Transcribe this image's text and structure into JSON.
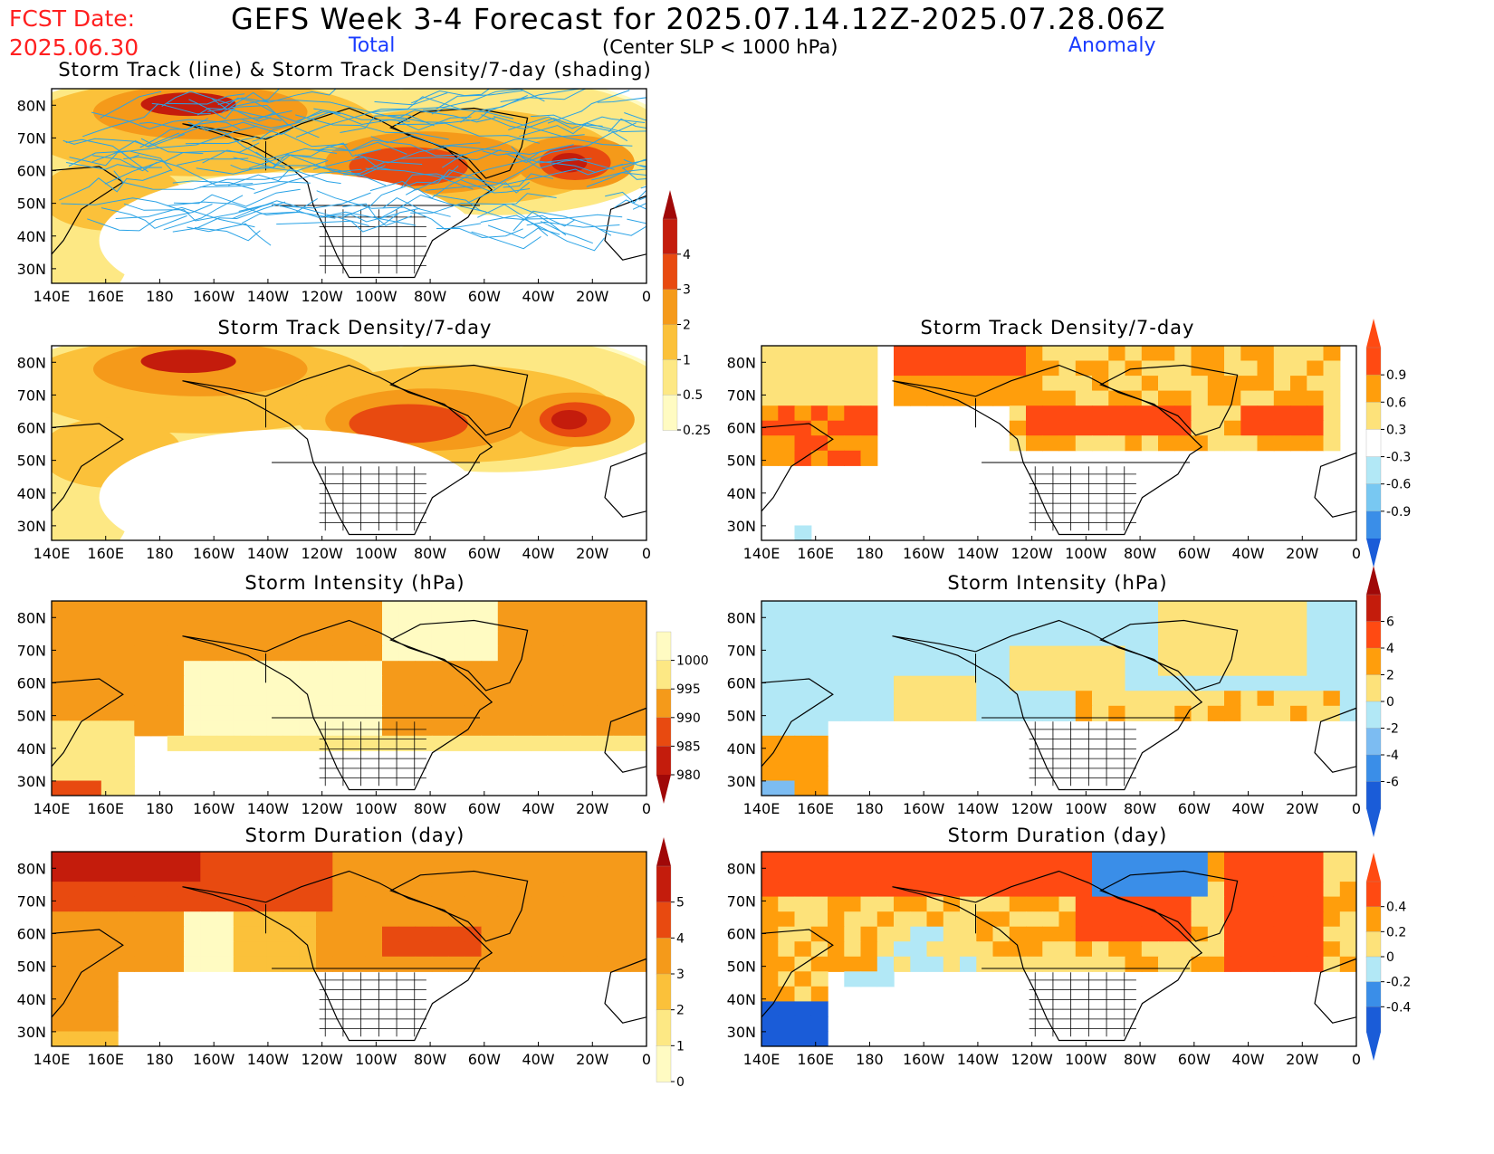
{
  "header": {
    "fcst_label": "FCST Date:",
    "fcst_date": "2025.06.30",
    "title": "GEFS Week 3-4 Forecast for 2025.07.14.12Z-2025.07.28.06Z",
    "total_label": "Total",
    "criteria": "(Center SLP < 1000 hPa)",
    "anomaly_label": "Anomaly"
  },
  "map": {
    "lat_labels": [
      "80N",
      "70N",
      "60N",
      "50N",
      "40N",
      "30N"
    ],
    "lon_labels": [
      "140E",
      "160E",
      "180",
      "160W",
      "140W",
      "120W",
      "100W",
      "80W",
      "60W",
      "40W",
      "20W",
      "0"
    ]
  },
  "panels": [
    {
      "id": "track",
      "column": "total",
      "title": "Storm Track (line) & Storm Track Density/7-day (shading)",
      "field": "density",
      "tracks": true
    },
    {
      "id": "density-total",
      "column": "total",
      "title": "Storm Track Density/7-day",
      "field": "density"
    },
    {
      "id": "density-anom",
      "column": "anomaly",
      "title": "Storm Track Density/7-day",
      "field": "density-anom"
    },
    {
      "id": "intensity-total",
      "column": "total",
      "title": "Storm Intensity (hPa)",
      "field": "intensity"
    },
    {
      "id": "intensity-anom",
      "column": "anomaly",
      "title": "Storm Intensity (hPa)",
      "field": "intensity-anom"
    },
    {
      "id": "duration-total",
      "column": "total",
      "title": "Storm Duration (day)",
      "field": "duration"
    },
    {
      "id": "duration-anom",
      "column": "anomaly",
      "title": "Storm Duration (day)",
      "field": "duration-anom"
    }
  ],
  "colorbars": {
    "density": {
      "labels": [
        "4",
        "3",
        "2",
        "1",
        "0.5",
        "0.25"
      ],
      "colors": [
        "#c41c0c",
        "#e84a10",
        "#f59a1a",
        "#fbc13a",
        "#fde884",
        "#fffbc2"
      ],
      "tip_top": "#a00808",
      "tip_bottom": null
    },
    "intensity": {
      "labels": [
        "1000",
        "995",
        "990",
        "985",
        "980"
      ],
      "colors": [
        "#fffbc2",
        "#fde884",
        "#f59a1a",
        "#e84a10",
        "#c41c0c"
      ],
      "tip_top": null,
      "tip_bottom": "#a00808"
    },
    "duration": {
      "labels": [
        "5",
        "4",
        "3",
        "2",
        "1",
        "0"
      ],
      "colors": [
        "#c41c0c",
        "#e84a10",
        "#f59a1a",
        "#fbc13a",
        "#fde884",
        "#fffbc2"
      ],
      "tip_top": "#a00808",
      "tip_bottom": null
    },
    "density-anom": {
      "labels": [
        "0.9",
        "0.6",
        "0.3",
        "-0.3",
        "-0.6",
        "-0.9"
      ],
      "colors": [
        "#ff4a12",
        "#ff9e0c",
        "#fde27a",
        "#ffffff",
        "#b2e8f6",
        "#78c8f2",
        "#3a8ee8"
      ],
      "tip_top": "#ff4a12",
      "tip_bottom": "#1a5cd8"
    },
    "intensity-anom": {
      "labels": [
        "6",
        "4",
        "2",
        "0",
        "-2",
        "-4",
        "-6"
      ],
      "colors": [
        "#c41c0c",
        "#ff4a12",
        "#ff9e0c",
        "#fde27a",
        "#b2e8f6",
        "#7cbcf2",
        "#3a8ee8",
        "#1a5cd8"
      ],
      "tip_top": "#a00808",
      "tip_bottom": "#1a5cd8"
    },
    "duration-anom": {
      "labels": [
        "0.4",
        "0.2",
        "0",
        "-0.2",
        "-0.4"
      ],
      "colors": [
        "#ff4a12",
        "#ff9e0c",
        "#fde27a",
        "#b2e8f6",
        "#3a8ee8",
        "#1a5cd8"
      ],
      "tip_top": "#ff4a12",
      "tip_bottom": "#1a5cd8"
    }
  }
}
